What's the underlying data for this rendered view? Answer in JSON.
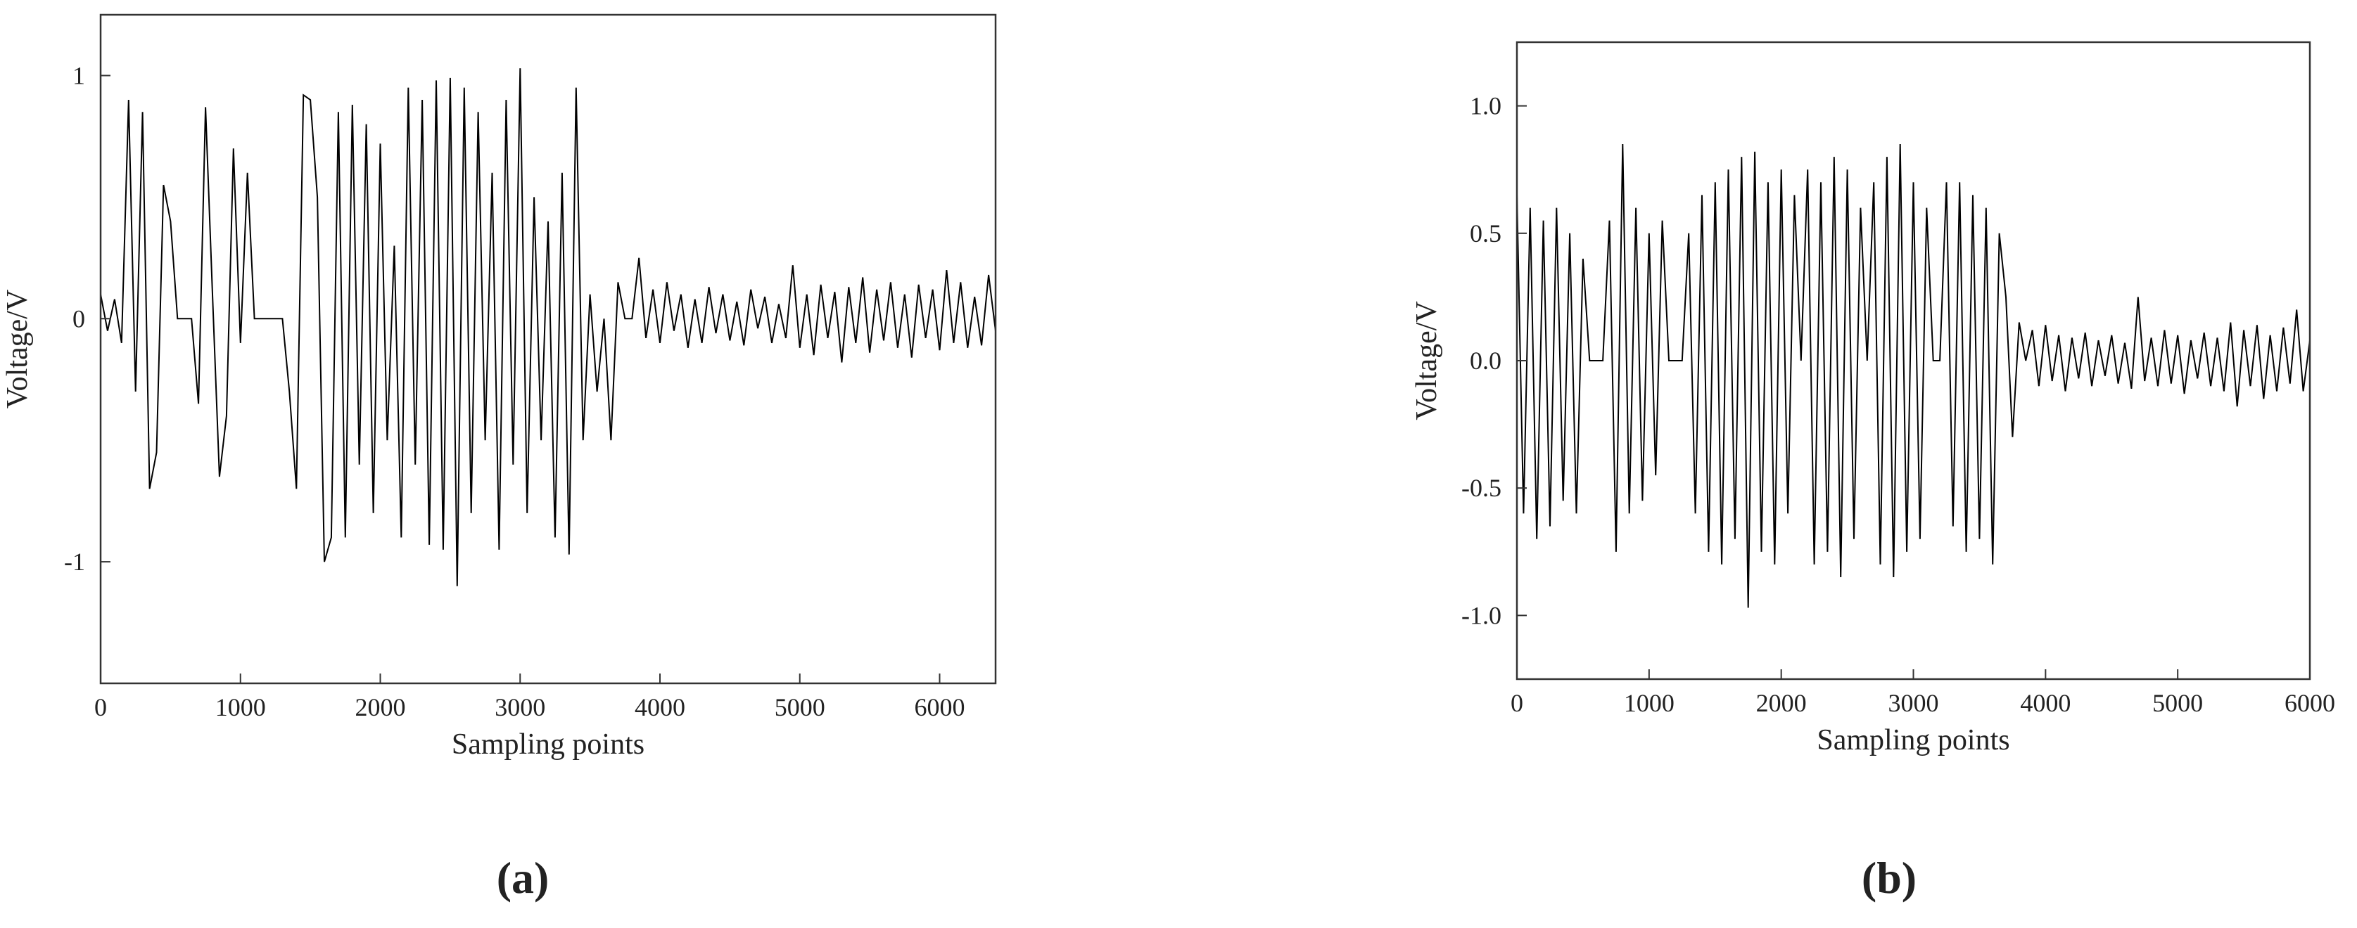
{
  "chart_data": [
    {
      "type": "line",
      "label": "(a)",
      "x_label": "Sampling points",
      "y_label": "Voltage/V",
      "xlim": [
        0,
        6400
      ],
      "ylim": [
        -1.5,
        1.25
      ],
      "xticks": [
        0,
        1000,
        2000,
        3000,
        4000,
        5000,
        6000
      ],
      "yticks": [
        -1,
        0,
        1
      ],
      "color": "#000000",
      "x": [
        0,
        50,
        100,
        150,
        200,
        250,
        300,
        350,
        400,
        450,
        500,
        550,
        600,
        650,
        700,
        750,
        800,
        850,
        900,
        950,
        1000,
        1050,
        1100,
        1150,
        1200,
        1250,
        1300,
        1350,
        1400,
        1450,
        1500,
        1550,
        1600,
        1650,
        1700,
        1750,
        1800,
        1850,
        1900,
        1950,
        2000,
        2050,
        2100,
        2150,
        2200,
        2250,
        2300,
        2350,
        2400,
        2450,
        2500,
        2550,
        2600,
        2650,
        2700,
        2750,
        2800,
        2850,
        2900,
        2950,
        3000,
        3050,
        3100,
        3150,
        3200,
        3250,
        3300,
        3350,
        3400,
        3450,
        3500,
        3550,
        3600,
        3650,
        3700,
        3750,
        3800,
        3850,
        3900,
        3950,
        4000,
        4050,
        4100,
        4150,
        4200,
        4250,
        4300,
        4350,
        4400,
        4450,
        4500,
        4550,
        4600,
        4650,
        4700,
        4750,
        4800,
        4850,
        4900,
        4950,
        5000,
        5050,
        5100,
        5150,
        5200,
        5250,
        5300,
        5350,
        5400,
        5450,
        5500,
        5550,
        5600,
        5650,
        5700,
        5750,
        5800,
        5850,
        5900,
        5950,
        6000,
        6050,
        6100,
        6150,
        6200,
        6250,
        6300,
        6350,
        6400
      ],
      "values": [
        0.1,
        -0.05,
        0.08,
        -0.1,
        0.9,
        -0.3,
        0.85,
        -0.7,
        -0.55,
        0.55,
        0.4,
        0,
        0,
        0,
        -0.35,
        0.87,
        0.1,
        -0.65,
        -0.4,
        0.7,
        -0.1,
        0.6,
        0,
        0,
        0,
        0,
        0,
        -0.3,
        -0.7,
        0.92,
        0.9,
        0.5,
        -1.0,
        -0.9,
        0.85,
        -0.9,
        0.88,
        -0.6,
        0.8,
        -0.8,
        0.72,
        -0.5,
        0.3,
        -0.9,
        0.95,
        -0.6,
        0.9,
        -0.93,
        0.98,
        -0.95,
        0.99,
        -1.1,
        0.95,
        -0.8,
        0.85,
        -0.5,
        0.6,
        -0.95,
        0.9,
        -0.6,
        1.03,
        -0.8,
        0.5,
        -0.5,
        0.4,
        -0.9,
        0.6,
        -0.97,
        0.95,
        -0.5,
        0.1,
        -0.3,
        0,
        -0.5,
        0.15,
        0,
        0,
        0.25,
        -0.08,
        0.12,
        -0.1,
        0.15,
        -0.05,
        0.1,
        -0.12,
        0.08,
        -0.1,
        0.13,
        -0.06,
        0.1,
        -0.09,
        0.07,
        -0.11,
        0.12,
        -0.04,
        0.09,
        -0.1,
        0.06,
        -0.08,
        0.22,
        -0.12,
        0.1,
        -0.15,
        0.14,
        -0.08,
        0.11,
        -0.18,
        0.13,
        -0.1,
        0.17,
        -0.14,
        0.12,
        -0.09,
        0.15,
        -0.12,
        0.1,
        -0.16,
        0.14,
        -0.08,
        0.12,
        -0.13,
        0.2,
        -0.1,
        0.15,
        -0.12,
        0.09,
        -0.11,
        0.18,
        -0.05
      ]
    },
    {
      "type": "line",
      "label": "(b)",
      "x_label": "Sampling points",
      "y_label": "Voltage/V",
      "xlim": [
        0,
        6000
      ],
      "ylim": [
        -1.25,
        1.25
      ],
      "xticks": [
        0,
        1000,
        2000,
        3000,
        4000,
        5000,
        6000
      ],
      "yticks": [
        {
          "value": -1,
          "label": "-1.0"
        },
        -0.5,
        {
          "value": 0,
          "label": "0.0"
        },
        0.5,
        {
          "value": 1,
          "label": "1.0"
        }
      ],
      "color": "#000000",
      "x": [
        0,
        50,
        100,
        150,
        200,
        250,
        300,
        350,
        400,
        450,
        500,
        550,
        600,
        650,
        700,
        750,
        800,
        850,
        900,
        950,
        1000,
        1050,
        1100,
        1150,
        1200,
        1250,
        1300,
        1350,
        1400,
        1450,
        1500,
        1550,
        1600,
        1650,
        1700,
        1750,
        1800,
        1850,
        1900,
        1950,
        2000,
        2050,
        2100,
        2150,
        2200,
        2250,
        2300,
        2350,
        2400,
        2450,
        2500,
        2550,
        2600,
        2650,
        2700,
        2750,
        2800,
        2850,
        2900,
        2950,
        3000,
        3050,
        3100,
        3150,
        3200,
        3250,
        3300,
        3350,
        3400,
        3450,
        3500,
        3550,
        3600,
        3650,
        3700,
        3750,
        3800,
        3850,
        3900,
        3950,
        4000,
        4050,
        4100,
        4150,
        4200,
        4250,
        4300,
        4350,
        4400,
        4450,
        4500,
        4550,
        4600,
        4650,
        4700,
        4750,
        4800,
        4850,
        4900,
        4950,
        5000,
        5050,
        5100,
        5150,
        5200,
        5250,
        5300,
        5350,
        5400,
        5450,
        5500,
        5550,
        5600,
        5650,
        5700,
        5750,
        5800,
        5850,
        5900,
        5950,
        6000
      ],
      "values": [
        0.65,
        -0.6,
        0.6,
        -0.7,
        0.55,
        -0.65,
        0.6,
        -0.55,
        0.5,
        -0.6,
        0.4,
        0,
        0,
        0,
        0.55,
        -0.75,
        0.85,
        -0.6,
        0.6,
        -0.55,
        0.5,
        -0.45,
        0.55,
        0,
        0,
        0,
        0.5,
        -0.6,
        0.65,
        -0.75,
        0.7,
        -0.8,
        0.75,
        -0.7,
        0.8,
        -0.97,
        0.82,
        -0.75,
        0.7,
        -0.8,
        0.75,
        -0.6,
        0.65,
        0,
        0.75,
        -0.8,
        0.7,
        -0.75,
        0.8,
        -0.85,
        0.75,
        -0.7,
        0.6,
        0,
        0.7,
        -0.8,
        0.8,
        -0.85,
        0.85,
        -0.75,
        0.7,
        -0.7,
        0.6,
        0,
        0,
        0.7,
        -0.65,
        0.7,
        -0.75,
        0.65,
        -0.7,
        0.6,
        -0.8,
        0.5,
        0.25,
        -0.3,
        0.15,
        0,
        0.12,
        -0.1,
        0.14,
        -0.08,
        0.1,
        -0.12,
        0.09,
        -0.07,
        0.11,
        -0.1,
        0.08,
        -0.06,
        0.1,
        -0.09,
        0.07,
        -0.11,
        0.25,
        -0.08,
        0.09,
        -0.1,
        0.12,
        -0.09,
        0.1,
        -0.13,
        0.08,
        -0.07,
        0.11,
        -0.1,
        0.09,
        -0.12,
        0.15,
        -0.18,
        0.12,
        -0.1,
        0.14,
        -0.15,
        0.1,
        -0.12,
        0.13,
        -0.09,
        0.2,
        -0.12,
        0.08
      ]
    }
  ]
}
